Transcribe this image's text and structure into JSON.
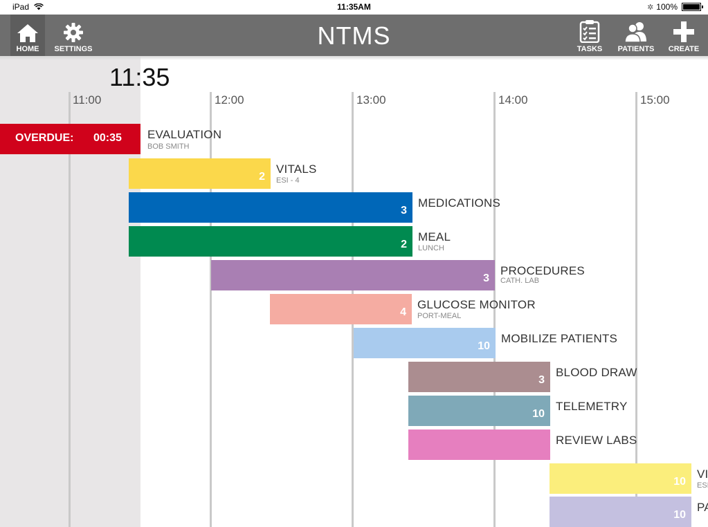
{
  "status_bar": {
    "device": "iPad",
    "time": "11:35AM",
    "battery": "100%"
  },
  "nav": {
    "title": "NTMS",
    "left": [
      {
        "label": "HOME",
        "icon": "home-icon"
      },
      {
        "label": "SETTINGS",
        "icon": "gear-icon"
      }
    ],
    "right": [
      {
        "label": "TASKS",
        "icon": "clipboard-icon"
      },
      {
        "label": "PATIENTS",
        "icon": "patients-icon"
      },
      {
        "label": "CREATE",
        "icon": "plus-icon"
      }
    ]
  },
  "timeline": {
    "current_time": "11:35",
    "hours": [
      "11:00",
      "12:00",
      "13:00",
      "14:00",
      "15:00"
    ],
    "overdue": {
      "label": "OVERDUE:",
      "time": "00:35",
      "task": "EVALUATION",
      "sub": "BOB SMITH",
      "color": "#d0021b"
    },
    "tasks": [
      {
        "name": "VITALS",
        "sub": "ESI - 4",
        "count": "2",
        "color": "#fbd84b"
      },
      {
        "name": "MEDICATIONS",
        "sub": "",
        "count": "3",
        "color": "#0067b8"
      },
      {
        "name": "MEAL",
        "sub": "LUNCH",
        "count": "2",
        "color": "#008a50"
      },
      {
        "name": "PROCEDURES",
        "sub": "CATH. LAB",
        "count": "3",
        "color": "#a97fb3"
      },
      {
        "name": "GLUCOSE MONITOR",
        "sub": "PORT-MEAL",
        "count": "4",
        "color": "#f5aca2"
      },
      {
        "name": "MOBILIZE PATIENTS",
        "sub": "",
        "count": "10",
        "color": "#a9cbee"
      },
      {
        "name": "BLOOD DRAW",
        "sub": "",
        "count": "3",
        "color": "#ab8d90"
      },
      {
        "name": "TELEMETRY",
        "sub": "",
        "count": "10",
        "color": "#7fa9b8"
      },
      {
        "name": "REVIEW LABS",
        "sub": "",
        "count": "",
        "color": "#e67fbf"
      },
      {
        "name": "VI",
        "sub": "ESI",
        "count": "10",
        "color": "#fbee7c"
      },
      {
        "name": "PA",
        "sub": "",
        "count": "10",
        "color": "#c4c0e0"
      }
    ]
  }
}
